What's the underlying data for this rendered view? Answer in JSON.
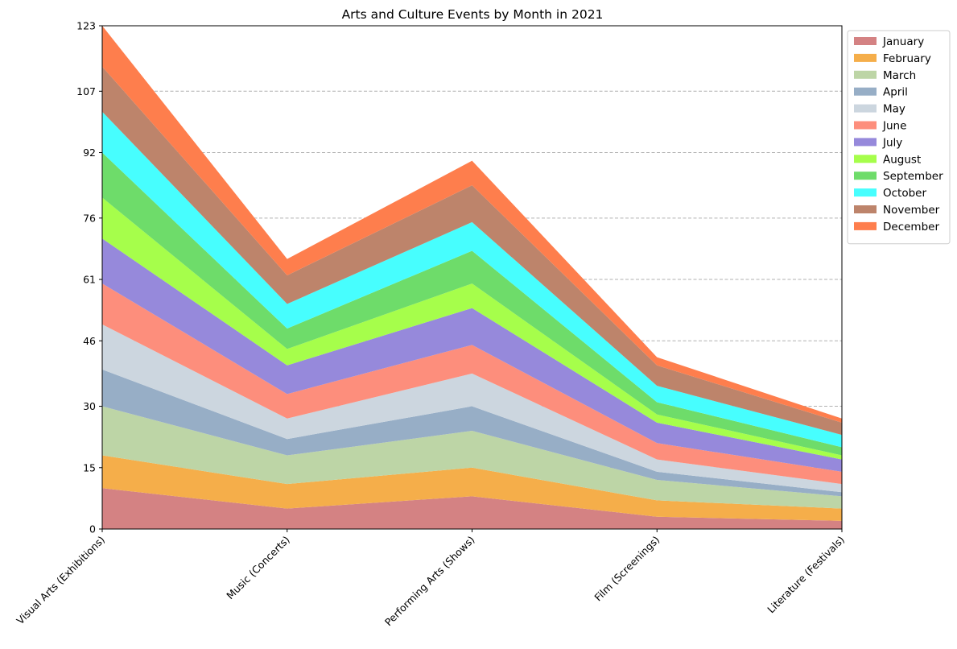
{
  "chart_data": {
    "type": "area",
    "stacked": true,
    "title": "Arts and Culture Events by Month in 2021",
    "xlabel": "",
    "ylabel": "",
    "categories": [
      "Visual Arts (Exhibitions)",
      "Music (Concerts)",
      "Performing Arts (Shows)",
      "Film (Screenings)",
      "Literature (Festivals)"
    ],
    "ylim": [
      0,
      123
    ],
    "yticks": [
      0,
      15,
      30,
      46,
      61,
      76,
      92,
      107,
      123
    ],
    "grid": "y-dashed",
    "legend_position": "upper-right-outside",
    "series": [
      {
        "name": "January",
        "color": "#d48283",
        "values": [
          10,
          5,
          8,
          3,
          2
        ]
      },
      {
        "name": "February",
        "color": "#f5ae4a",
        "values": [
          8,
          6,
          7,
          4,
          3
        ]
      },
      {
        "name": "March",
        "color": "#bdd5a6",
        "values": [
          12,
          7,
          9,
          5,
          3
        ]
      },
      {
        "name": "April",
        "color": "#97aec6",
        "values": [
          9,
          4,
          6,
          2,
          1
        ]
      },
      {
        "name": "May",
        "color": "#ccd6df",
        "values": [
          11,
          5,
          8,
          3,
          2
        ]
      },
      {
        "name": "June",
        "color": "#fd8e7c",
        "values": [
          10,
          6,
          7,
          4,
          3
        ]
      },
      {
        "name": "July",
        "color": "#9689db",
        "values": [
          11,
          7,
          9,
          5,
          3
        ]
      },
      {
        "name": "August",
        "color": "#a6fe4b",
        "values": [
          10,
          4,
          6,
          2,
          1
        ]
      },
      {
        "name": "September",
        "color": "#6edc6a",
        "values": [
          11,
          5,
          8,
          3,
          2
        ]
      },
      {
        "name": "October",
        "color": "#47fefe",
        "values": [
          10,
          6,
          7,
          4,
          3
        ]
      },
      {
        "name": "November",
        "color": "#bd846b",
        "values": [
          11,
          7,
          9,
          5,
          3
        ]
      },
      {
        "name": "December",
        "color": "#fe7e4d",
        "values": [
          10,
          4,
          6,
          2,
          1
        ]
      }
    ]
  }
}
